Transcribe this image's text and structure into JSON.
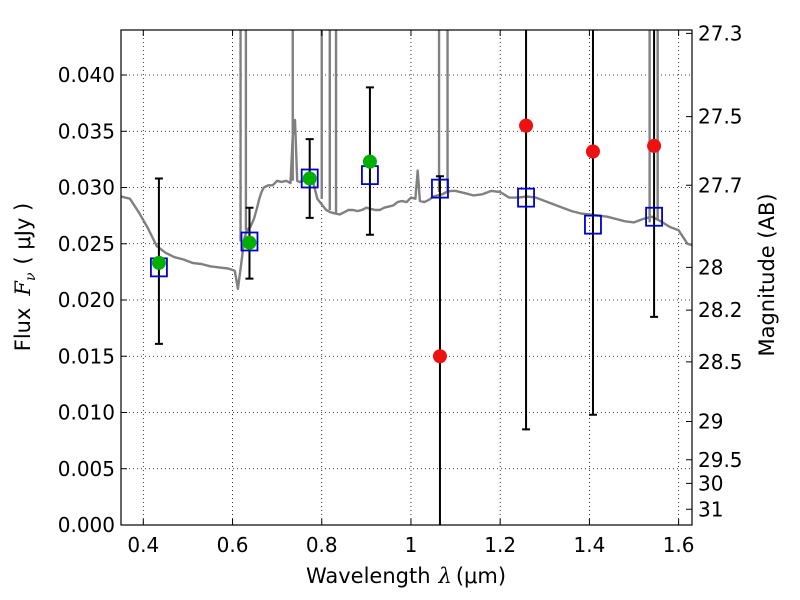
{
  "chart_data": {
    "type": "scatter",
    "xlabel": {
      "prefix": "Wavelength",
      "symbol": "λ",
      "unit": "(μm)"
    },
    "ylabel": {
      "prefix": "Flux",
      "symbol": "F",
      "subscript": "ν",
      "unit": "( μJy )"
    },
    "y2label": "Magnitude (AB)",
    "xlim": [
      0.35,
      1.63
    ],
    "ylim": [
      0.0,
      0.044
    ],
    "grid": true,
    "x_ticks": [
      {
        "value": 0.4,
        "label": "0.4"
      },
      {
        "value": 0.6,
        "label": "0.6"
      },
      {
        "value": 0.8,
        "label": "0.8"
      },
      {
        "value": 1.0,
        "label": "1"
      },
      {
        "value": 1.2,
        "label": "1.2"
      },
      {
        "value": 1.4,
        "label": "1.4"
      },
      {
        "value": 1.6,
        "label": "1.6"
      }
    ],
    "y_ticks": [
      {
        "value": 0.0,
        "label": "0.000"
      },
      {
        "value": 0.005,
        "label": "0.005"
      },
      {
        "value": 0.01,
        "label": "0.010"
      },
      {
        "value": 0.015,
        "label": "0.015"
      },
      {
        "value": 0.02,
        "label": "0.020"
      },
      {
        "value": 0.025,
        "label": "0.025"
      },
      {
        "value": 0.03,
        "label": "0.030"
      },
      {
        "value": 0.035,
        "label": "0.035"
      },
      {
        "value": 0.04,
        "label": "0.040"
      }
    ],
    "y2_ticks": [
      {
        "label": "27.3",
        "flux": 0.0437
      },
      {
        "label": "27.5",
        "flux": 0.0363
      },
      {
        "label": "27.7",
        "flux": 0.0302
      },
      {
        "label": "28",
        "flux": 0.0229
      },
      {
        "label": "28.2",
        "flux": 0.0191
      },
      {
        "label": "28.5",
        "flux": 0.0145
      },
      {
        "label": "29",
        "flux": 0.0092
      },
      {
        "label": "29.5",
        "flux": 0.0058
      },
      {
        "label": "30",
        "flux": 0.0037
      },
      {
        "label": "31",
        "flux": 0.0014
      }
    ],
    "colors": {
      "spectrum": "#808080",
      "model_squares": "#0000cc",
      "detections": "#00b000",
      "upper": "#ee1111",
      "errorbar": "#000000"
    },
    "series": [
      {
        "type": "line",
        "color_key": "spectrum",
        "x": [
          0.35,
          0.37,
          0.39,
          0.41,
          0.43,
          0.45,
          0.47,
          0.49,
          0.51,
          0.53,
          0.55,
          0.57,
          0.59,
          0.605,
          0.612,
          0.618,
          0.622,
          0.626,
          0.632,
          0.64,
          0.648,
          0.655,
          0.66,
          0.665,
          0.67,
          0.68,
          0.69,
          0.7,
          0.71,
          0.72,
          0.73,
          0.735,
          0.74,
          0.745,
          0.75,
          0.76,
          0.77,
          0.78,
          0.79,
          0.8,
          0.81,
          0.82,
          0.83,
          0.84,
          0.85,
          0.86,
          0.87,
          0.88,
          0.89,
          0.9,
          0.91,
          0.92,
          0.93,
          0.94,
          0.95,
          0.96,
          0.97,
          0.98,
          0.99,
          1.0,
          1.01,
          1.015,
          1.02,
          1.03,
          1.04,
          1.05,
          1.06,
          1.07,
          1.08,
          1.09,
          1.1,
          1.12,
          1.14,
          1.16,
          1.18,
          1.2,
          1.22,
          1.24,
          1.26,
          1.28,
          1.3,
          1.32,
          1.34,
          1.36,
          1.38,
          1.4,
          1.42,
          1.44,
          1.46,
          1.48,
          1.5,
          1.52,
          1.54,
          1.56,
          1.58,
          1.6,
          1.62,
          1.63
        ],
        "y": [
          0.0292,
          0.029,
          0.0278,
          0.0264,
          0.0248,
          0.0242,
          0.0238,
          0.0236,
          0.0233,
          0.0232,
          0.023,
          0.0229,
          0.0228,
          0.0226,
          0.021,
          0.0228,
          0.024,
          0.0254,
          0.0262,
          0.0265,
          0.0272,
          0.0282,
          0.029,
          0.0296,
          0.03,
          0.0302,
          0.0302,
          0.0306,
          0.0305,
          0.0306,
          0.0304,
          0.0345,
          0.036,
          0.0306,
          0.0305,
          0.0306,
          0.0306,
          0.0306,
          0.029,
          0.0285,
          0.028,
          0.0278,
          0.0277,
          0.0276,
          0.0278,
          0.028,
          0.028,
          0.0279,
          0.028,
          0.0282,
          0.0281,
          0.028,
          0.028,
          0.0282,
          0.0283,
          0.0284,
          0.0287,
          0.0288,
          0.0287,
          0.0291,
          0.029,
          0.0315,
          0.0288,
          0.0287,
          0.0289,
          0.0292,
          0.0293,
          0.0294,
          0.0296,
          0.0297,
          0.0297,
          0.0295,
          0.0293,
          0.0294,
          0.0297,
          0.0296,
          0.0291,
          0.0291,
          0.0292,
          0.0291,
          0.0288,
          0.0285,
          0.0282,
          0.0279,
          0.0277,
          0.0276,
          0.0275,
          0.0274,
          0.0272,
          0.027,
          0.0269,
          0.0272,
          0.0274,
          0.027,
          0.0265,
          0.0262,
          0.025,
          0.0249
        ]
      },
      {
        "type": "errorbar",
        "color_key": "errorbar",
        "points": [
          {
            "x": 0.435,
            "low": 0.0161,
            "high": 0.0308
          },
          {
            "x": 0.638,
            "low": 0.0219,
            "high": 0.0282
          },
          {
            "x": 0.773,
            "low": 0.0273,
            "high": 0.0343
          },
          {
            "x": 0.908,
            "low": 0.0258,
            "high": 0.0389
          },
          {
            "x": 1.065,
            "low": 0.0,
            "high": 0.031
          },
          {
            "x": 1.258,
            "low": 0.0085,
            "high": 0.044
          },
          {
            "x": 1.408,
            "low": 0.0098,
            "high": 0.044
          },
          {
            "x": 1.545,
            "low": 0.0185,
            "high": 0.044
          }
        ]
      },
      {
        "type": "scatter",
        "marker": "square",
        "color_key": "model_squares",
        "x": [
          0.435,
          0.638,
          0.773,
          0.908,
          1.065,
          1.258,
          1.408,
          1.545
        ],
        "y": [
          0.0229,
          0.0252,
          0.0308,
          0.0311,
          0.0299,
          0.0291,
          0.0267,
          0.0274
        ]
      },
      {
        "type": "scatter",
        "marker": "circle",
        "color_key": "detections",
        "x": [
          0.435,
          0.638,
          0.773,
          0.908
        ],
        "y": [
          0.0233,
          0.0251,
          0.0308,
          0.0323
        ]
      },
      {
        "type": "scatter",
        "marker": "circle",
        "color_key": "upper",
        "x": [
          1.065,
          1.258,
          1.408,
          1.545
        ],
        "y": [
          0.015,
          0.0355,
          0.0332,
          0.0337
        ]
      }
    ]
  }
}
